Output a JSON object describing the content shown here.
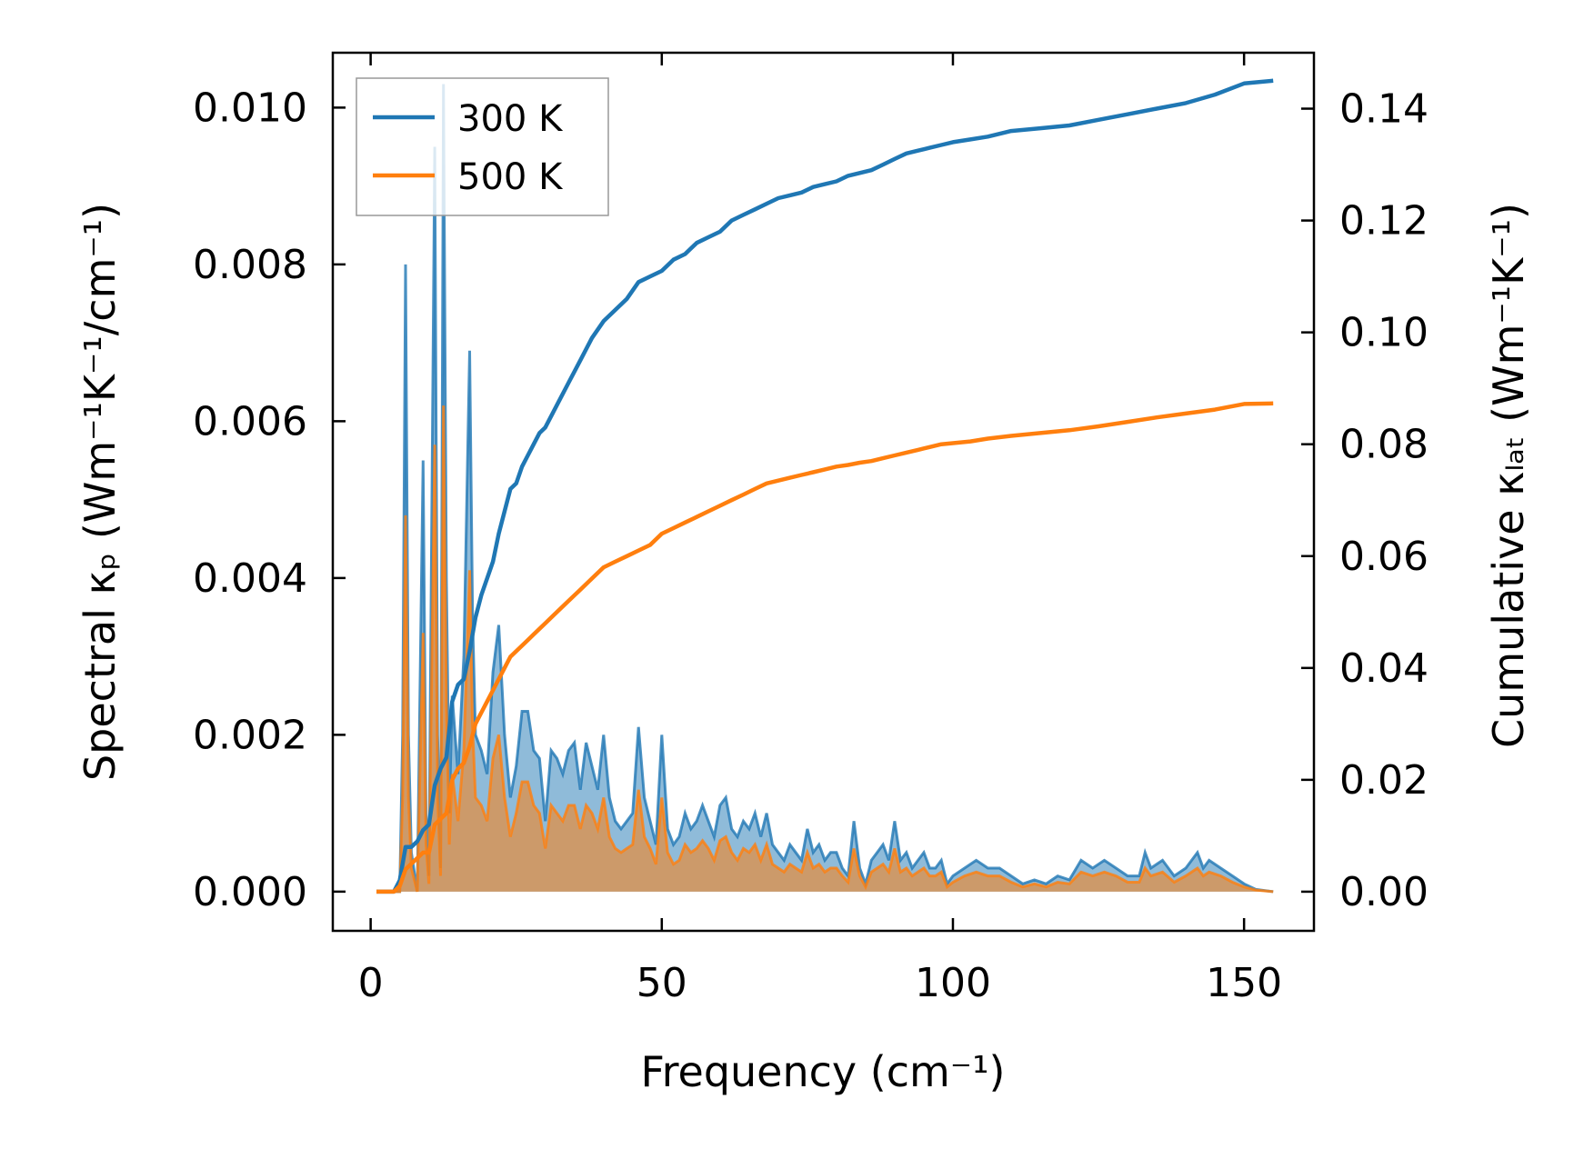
{
  "chart_data": {
    "type": "line",
    "xlabel": "Frequency (cm⁻¹)",
    "ylabel_left": "Spectral κₚ (Wm⁻¹K⁻¹/cm⁻¹)",
    "ylabel_right": "Cumulative κₗₐₜ (Wm⁻¹K⁻¹)",
    "xlim": [
      -6.5,
      162
    ],
    "ylim_left": [
      -0.0005,
      0.0107
    ],
    "ylim_right": [
      -0.007,
      0.15
    ],
    "x_ticks": [
      0,
      50,
      100,
      150
    ],
    "x_tick_labels": [
      "0",
      "50",
      "100",
      "150"
    ],
    "y_left_ticks": [
      0,
      0.002,
      0.004,
      0.006,
      0.008,
      0.01
    ],
    "y_left_tick_labels": [
      "0.000",
      "0.002",
      "0.004",
      "0.006",
      "0.008",
      "0.010"
    ],
    "y_right_ticks": [
      0,
      0.02,
      0.04,
      0.06,
      0.08,
      0.1,
      0.12,
      0.14
    ],
    "y_right_tick_labels": [
      "0.00",
      "0.02",
      "0.04",
      "0.06",
      "0.08",
      "0.10",
      "0.12",
      "0.14"
    ],
    "legend": {
      "position": "top-left"
    },
    "colors": {
      "300K": "#1f77b4",
      "500K": "#ff7f0e"
    },
    "series": [
      {
        "name": "300 K",
        "spectral": {
          "x": [
            1,
            4,
            5,
            5.5,
            6,
            6.5,
            7,
            8,
            9,
            9.5,
            10,
            11,
            11.5,
            12,
            12.5,
            13,
            13.5,
            14,
            15,
            16,
            17,
            17.5,
            18,
            19,
            20,
            21,
            22,
            23,
            24,
            25,
            26,
            27,
            28,
            29,
            30,
            31,
            32,
            33,
            34,
            35,
            36,
            37,
            38,
            39,
            40,
            41,
            42,
            43,
            44,
            45,
            46,
            47,
            48,
            49,
            50,
            51,
            52,
            53,
            54,
            55,
            56,
            57,
            58,
            59,
            60,
            61,
            62,
            63,
            64,
            65,
            66,
            67,
            68,
            69,
            70,
            71,
            72,
            73,
            74,
            75,
            76,
            77,
            78,
            79,
            80,
            81,
            82,
            83,
            84,
            85,
            86,
            87,
            88,
            89,
            90,
            91,
            92,
            93,
            94,
            95,
            96,
            97,
            98,
            99,
            100,
            102,
            104,
            106,
            108,
            110,
            112,
            114,
            116,
            118,
            120,
            122,
            124,
            126,
            128,
            130,
            132,
            133,
            134,
            136,
            138,
            140,
            142,
            143,
            144,
            146,
            148,
            150,
            152,
            155
          ],
          "y": [
            0,
            0,
            0,
            0.002,
            0.008,
            0.002,
            0.0005,
            0,
            0.0055,
            0.001,
            0.0002,
            0.0095,
            0.002,
            0.0003,
            0.0103,
            0.004,
            0.001,
            0.0025,
            0.0015,
            0.003,
            0.0069,
            0.0035,
            0.002,
            0.0018,
            0.0015,
            0.0028,
            0.0034,
            0.002,
            0.0012,
            0.0016,
            0.0023,
            0.0023,
            0.0018,
            0.0017,
            0.0009,
            0.0018,
            0.0017,
            0.0015,
            0.0018,
            0.0019,
            0.0013,
            0.0019,
            0.0016,
            0.0013,
            0.002,
            0.0012,
            0.0009,
            0.0008,
            0.0009,
            0.001,
            0.0021,
            0.0012,
            0.0009,
            0.0006,
            0.002,
            0.0008,
            0.0006,
            0.0007,
            0.001,
            0.0008,
            0.0009,
            0.0011,
            0.0009,
            0.0007,
            0.0011,
            0.0012,
            0.0008,
            0.0007,
            0.0009,
            0.0008,
            0.001,
            0.0007,
            0.001,
            0.0006,
            0.0005,
            0.0004,
            0.0006,
            0.0005,
            0.0004,
            0.0008,
            0.0005,
            0.0006,
            0.0004,
            0.0005,
            0.0005,
            0.0003,
            0.0002,
            0.0009,
            0.0003,
            0.0001,
            0.0004,
            0.0005,
            0.0006,
            0.0004,
            0.0009,
            0.0004,
            0.0005,
            0.0003,
            0.0004,
            0.0005,
            0.0003,
            0.0003,
            0.0004,
            0.0001,
            0.0002,
            0.0003,
            0.0004,
            0.0003,
            0.0003,
            0.0002,
            0.0001,
            0.00015,
            0.0001,
            0.0002,
            0.00015,
            0.0004,
            0.0003,
            0.0004,
            0.0003,
            0.0002,
            0.0002,
            0.0005,
            0.0003,
            0.0004,
            0.0002,
            0.0003,
            0.0005,
            0.0003,
            0.0004,
            0.0003,
            0.0002,
            0.0001,
            3e-05,
            0
          ]
        },
        "cumulative": {
          "x": [
            1,
            4,
            5,
            6,
            7,
            8,
            9,
            10,
            11,
            12,
            13,
            14,
            15,
            16,
            17,
            18,
            19,
            20,
            21,
            22,
            23,
            24,
            25,
            26,
            27,
            28,
            29,
            30,
            32,
            34,
            36,
            38,
            40,
            42,
            44,
            46,
            48,
            50,
            52,
            54,
            56,
            58,
            60,
            62,
            64,
            66,
            68,
            70,
            72,
            74,
            76,
            78,
            80,
            82,
            84,
            86,
            88,
            90,
            92,
            94,
            96,
            98,
            100,
            103,
            106,
            110,
            115,
            120,
            125,
            130,
            135,
            140,
            145,
            150,
            155
          ],
          "y": [
            0,
            0,
            0.002,
            0.008,
            0.008,
            0.009,
            0.011,
            0.012,
            0.019,
            0.022,
            0.024,
            0.034,
            0.037,
            0.038,
            0.043,
            0.049,
            0.053,
            0.056,
            0.059,
            0.064,
            0.068,
            0.072,
            0.073,
            0.076,
            0.078,
            0.08,
            0.082,
            0.083,
            0.087,
            0.091,
            0.095,
            0.099,
            0.102,
            0.104,
            0.106,
            0.109,
            0.11,
            0.111,
            0.113,
            0.114,
            0.116,
            0.117,
            0.118,
            0.12,
            0.121,
            0.122,
            0.123,
            0.124,
            0.1245,
            0.125,
            0.126,
            0.1265,
            0.127,
            0.128,
            0.1285,
            0.129,
            0.13,
            0.131,
            0.132,
            0.1325,
            0.133,
            0.1335,
            0.134,
            0.1345,
            0.135,
            0.136,
            0.1365,
            0.137,
            0.138,
            0.139,
            0.14,
            0.141,
            0.1425,
            0.1445,
            0.145
          ]
        }
      },
      {
        "name": "500 K",
        "spectral": {
          "x": [
            1,
            4,
            5,
            5.5,
            6,
            6.5,
            7,
            8,
            9,
            9.5,
            10,
            11,
            11.5,
            12,
            12.5,
            13,
            13.5,
            14,
            15,
            16,
            17,
            17.5,
            18,
            19,
            20,
            21,
            22,
            23,
            24,
            25,
            26,
            27,
            28,
            29,
            30,
            31,
            32,
            33,
            34,
            35,
            36,
            37,
            38,
            39,
            40,
            41,
            42,
            43,
            44,
            45,
            46,
            47,
            48,
            49,
            50,
            51,
            52,
            53,
            54,
            55,
            56,
            57,
            58,
            59,
            60,
            61,
            62,
            63,
            64,
            65,
            66,
            67,
            68,
            69,
            70,
            71,
            72,
            73,
            74,
            75,
            76,
            77,
            78,
            79,
            80,
            81,
            82,
            83,
            84,
            85,
            86,
            87,
            88,
            89,
            90,
            91,
            92,
            93,
            94,
            95,
            96,
            97,
            98,
            99,
            100,
            102,
            104,
            106,
            108,
            110,
            112,
            114,
            116,
            118,
            120,
            122,
            124,
            126,
            128,
            130,
            132,
            133,
            134,
            136,
            138,
            140,
            142,
            143,
            144,
            146,
            148,
            150,
            152,
            155
          ],
          "y": [
            0,
            0,
            0,
            0.0012,
            0.0048,
            0.0012,
            0.0003,
            0,
            0.0033,
            0.0006,
            0.0001,
            0.0057,
            0.0012,
            0.0002,
            0.0062,
            0.0024,
            0.0006,
            0.0015,
            0.0009,
            0.0018,
            0.0041,
            0.0021,
            0.0012,
            0.0011,
            0.0009,
            0.0017,
            0.002,
            0.0012,
            0.0007,
            0.001,
            0.0014,
            0.0014,
            0.0011,
            0.001,
            0.00055,
            0.0011,
            0.001,
            0.0009,
            0.0011,
            0.0011,
            0.0008,
            0.0011,
            0.001,
            0.0008,
            0.0012,
            0.0007,
            0.00055,
            0.0005,
            0.00055,
            0.0006,
            0.0013,
            0.0007,
            0.00055,
            0.00035,
            0.0012,
            0.0005,
            0.00035,
            0.0004,
            0.0006,
            0.0005,
            0.00055,
            0.00065,
            0.00055,
            0.0004,
            0.00065,
            0.0007,
            0.0005,
            0.0004,
            0.00055,
            0.0005,
            0.0006,
            0.0004,
            0.0006,
            0.00035,
            0.0003,
            0.00025,
            0.00035,
            0.0003,
            0.00025,
            0.0005,
            0.0003,
            0.00035,
            0.00025,
            0.0003,
            0.0003,
            0.0002,
            0.00012,
            0.00055,
            0.0002,
            6e-05,
            0.00025,
            0.0003,
            0.00035,
            0.00025,
            0.00055,
            0.00025,
            0.0003,
            0.0002,
            0.00025,
            0.0003,
            0.0002,
            0.0002,
            0.00025,
            6e-05,
            0.00012,
            0.0002,
            0.00025,
            0.0002,
            0.0002,
            0.00012,
            6e-05,
            0.0001,
            6e-05,
            0.00012,
            0.0001,
            0.00025,
            0.0002,
            0.00025,
            0.0002,
            0.00012,
            0.00012,
            0.0003,
            0.0002,
            0.00025,
            0.00012,
            0.0002,
            0.0003,
            0.0002,
            0.00025,
            0.0002,
            0.00012,
            6e-05,
            2e-05,
            0
          ]
        },
        "cumulative": {
          "x": [
            1,
            4,
            5,
            6,
            7,
            8,
            9,
            10,
            11,
            12,
            13,
            14,
            15,
            16,
            17,
            18,
            19,
            20,
            21,
            22,
            23,
            24,
            25,
            26,
            27,
            28,
            29,
            30,
            32,
            34,
            36,
            38,
            40,
            42,
            44,
            46,
            48,
            50,
            52,
            54,
            56,
            58,
            60,
            62,
            64,
            66,
            68,
            70,
            72,
            74,
            76,
            78,
            80,
            82,
            84,
            86,
            88,
            90,
            92,
            94,
            96,
            98,
            100,
            103,
            106,
            110,
            115,
            120,
            125,
            130,
            135,
            140,
            145,
            150,
            155
          ],
          "y": [
            0,
            0,
            0.001,
            0.004,
            0.005,
            0.006,
            0.007,
            0.007,
            0.012,
            0.013,
            0.014,
            0.02,
            0.022,
            0.023,
            0.026,
            0.03,
            0.032,
            0.034,
            0.036,
            0.038,
            0.04,
            0.042,
            0.043,
            0.044,
            0.045,
            0.046,
            0.047,
            0.048,
            0.05,
            0.052,
            0.054,
            0.056,
            0.058,
            0.059,
            0.06,
            0.061,
            0.062,
            0.064,
            0.065,
            0.066,
            0.067,
            0.068,
            0.069,
            0.07,
            0.071,
            0.072,
            0.073,
            0.0735,
            0.074,
            0.0745,
            0.075,
            0.0755,
            0.076,
            0.0763,
            0.0767,
            0.077,
            0.0775,
            0.078,
            0.0785,
            0.079,
            0.0795,
            0.08,
            0.0802,
            0.0805,
            0.081,
            0.0815,
            0.082,
            0.0825,
            0.0832,
            0.084,
            0.0848,
            0.0855,
            0.0862,
            0.0872,
            0.0873
          ]
        }
      }
    ]
  }
}
